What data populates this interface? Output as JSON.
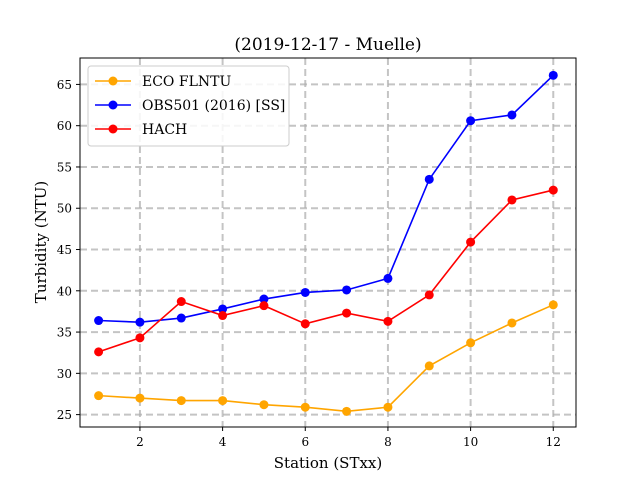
{
  "chart_data": {
    "type": "line",
    "title": "(2019-12-17 - Muelle)",
    "xlabel": "Station (STxx)",
    "ylabel": "Turbidity (NTU)",
    "xlim": [
      0.55,
      12.55
    ],
    "ylim": [
      23.5,
      68.2
    ],
    "xticks": [
      2,
      4,
      6,
      8,
      10,
      12
    ],
    "yticks": [
      25,
      30,
      35,
      40,
      45,
      50,
      55,
      60,
      65
    ],
    "grid": true,
    "legend_position": "upper left",
    "x": [
      1,
      2,
      3,
      4,
      5,
      6,
      7,
      8,
      9,
      10,
      11,
      12
    ],
    "series": [
      {
        "name": "ECO FLNTU",
        "color": "#FFA500",
        "values": [
          27.3,
          27.0,
          26.7,
          26.7,
          26.2,
          25.9,
          25.4,
          25.9,
          30.9,
          33.7,
          36.1,
          38.3
        ]
      },
      {
        "name": "OBS501 (2016) [SS]",
        "color": "#0000FF",
        "values": [
          36.4,
          36.2,
          36.7,
          37.8,
          39.0,
          39.8,
          40.1,
          41.5,
          53.5,
          60.6,
          61.3,
          66.1
        ]
      },
      {
        "name": "HACH",
        "color": "#FF0000",
        "values": [
          32.6,
          34.3,
          38.7,
          37.0,
          38.2,
          36.0,
          37.3,
          36.3,
          39.5,
          45.9,
          51.0,
          52.2
        ]
      }
    ]
  }
}
